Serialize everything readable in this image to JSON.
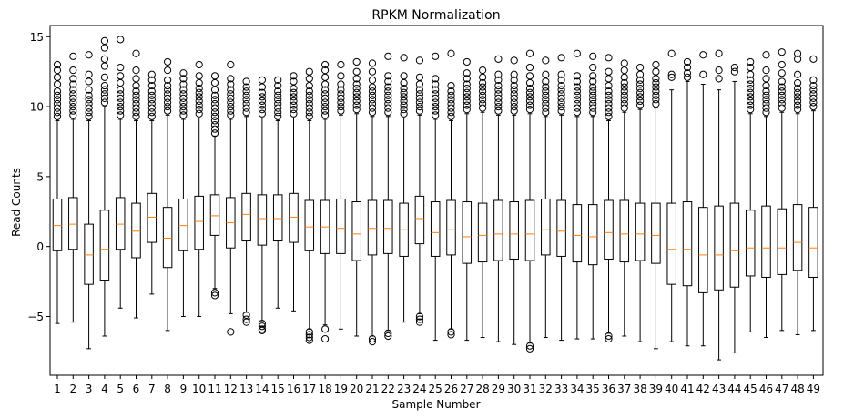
{
  "chart_data": {
    "type": "boxplot",
    "title": "RPKM Normalization",
    "xlabel": "Sample Number",
    "ylabel": "Read Counts",
    "ylim": [
      -9.2,
      15.8
    ],
    "yticks": [
      15,
      10,
      5,
      0,
      -5
    ],
    "ytick_labels": [
      "15",
      "10",
      "5",
      "0",
      "−5"
    ],
    "categories": [
      "1",
      "2",
      "3",
      "4",
      "5",
      "6",
      "7",
      "8",
      "9",
      "10",
      "11",
      "12",
      "13",
      "14",
      "15",
      "16",
      "17",
      "18",
      "19",
      "20",
      "21",
      "22",
      "23",
      "24",
      "25",
      "26",
      "27",
      "28",
      "29",
      "30",
      "31",
      "32",
      "33",
      "34",
      "35",
      "36",
      "37",
      "38",
      "39",
      "40",
      "41",
      "42",
      "43",
      "44",
      "45",
      "46",
      "47",
      "48",
      "49"
    ],
    "series": [
      {
        "name": "1",
        "q1": -0.3,
        "median": 1.5,
        "q3": 3.4,
        "whisker_low": -5.5,
        "whisker_high": 9.0,
        "outliers_high": [
          9.3,
          9.6,
          9.9,
          10.2,
          10.5,
          10.8,
          11.1,
          11.6,
          12.1,
          12.6,
          13.0
        ],
        "outliers_low": []
      },
      {
        "name": "2",
        "q1": -0.2,
        "median": 1.6,
        "q3": 3.5,
        "whisker_low": -5.4,
        "whisker_high": 9.1,
        "outliers_high": [
          9.4,
          9.7,
          10.0,
          10.3,
          10.6,
          10.9,
          11.2,
          11.6,
          12.0,
          12.6,
          13.6
        ],
        "outliers_low": []
      },
      {
        "name": "3",
        "q1": -2.7,
        "median": -0.6,
        "q3": 1.6,
        "whisker_low": -7.3,
        "whisker_high": 9.0,
        "outliers_high": [
          9.3,
          9.6,
          9.9,
          10.2,
          10.5,
          10.8,
          11.2,
          11.8,
          12.3,
          13.7
        ],
        "outliers_low": []
      },
      {
        "name": "4",
        "q1": -2.4,
        "median": -0.2,
        "q3": 2.6,
        "whisker_low": -6.4,
        "whisker_high": 10.0,
        "outliers_high": [
          10.3,
          10.6,
          10.9,
          11.2,
          11.5,
          12.1,
          12.9,
          13.4,
          14.2,
          14.7
        ],
        "outliers_low": []
      },
      {
        "name": "5",
        "q1": -0.2,
        "median": 1.6,
        "q3": 3.5,
        "whisker_low": -4.4,
        "whisker_high": 9.1,
        "outliers_high": [
          9.4,
          9.7,
          10.0,
          10.3,
          10.6,
          10.9,
          11.2,
          11.7,
          12.2,
          12.8,
          14.8
        ],
        "outliers_low": []
      },
      {
        "name": "6",
        "q1": -0.8,
        "median": 1.1,
        "q3": 3.1,
        "whisker_low": -5.1,
        "whisker_high": 9.0,
        "outliers_high": [
          9.3,
          9.6,
          9.9,
          10.2,
          10.5,
          10.8,
          11.1,
          11.5,
          12.0,
          12.6,
          13.8
        ],
        "outliers_low": []
      },
      {
        "name": "7",
        "q1": 0.3,
        "median": 2.1,
        "q3": 3.8,
        "whisker_low": -3.4,
        "whisker_high": 9.0,
        "outliers_high": [
          9.3,
          9.6,
          9.9,
          10.2,
          10.5,
          10.8,
          11.1,
          11.5,
          11.9,
          12.3
        ],
        "outliers_low": []
      },
      {
        "name": "8",
        "q1": -1.5,
        "median": 0.6,
        "q3": 2.8,
        "whisker_low": -6.0,
        "whisker_high": 9.4,
        "outliers_high": [
          9.7,
          10.0,
          10.3,
          10.6,
          10.9,
          11.2,
          11.5,
          11.9,
          12.6,
          13.2
        ],
        "outliers_low": []
      },
      {
        "name": "9",
        "q1": -0.3,
        "median": 1.5,
        "q3": 3.4,
        "whisker_low": -5.0,
        "whisker_high": 9.1,
        "outliers_high": [
          9.4,
          9.7,
          10.0,
          10.3,
          10.6,
          10.9,
          11.2,
          11.6,
          12.0,
          12.4
        ],
        "outliers_low": []
      },
      {
        "name": "10",
        "q1": -0.2,
        "median": 1.8,
        "q3": 3.6,
        "whisker_low": -5.0,
        "whisker_high": 9.2,
        "outliers_high": [
          9.5,
          9.8,
          10.1,
          10.4,
          10.7,
          11.0,
          11.3,
          11.7,
          12.2,
          13.0
        ],
        "outliers_low": []
      },
      {
        "name": "11",
        "q1": 0.8,
        "median": 2.2,
        "q3": 3.7,
        "whisker_low": -3.0,
        "whisker_high": 7.9,
        "outliers_high": [
          8.1,
          8.4,
          8.7,
          9.0,
          9.3,
          9.6,
          9.9,
          10.2,
          10.5,
          10.8,
          11.2,
          11.7,
          12.2
        ],
        "outliers_low": [
          -3.3,
          -3.5
        ]
      },
      {
        "name": "12",
        "q1": -0.1,
        "median": 1.7,
        "q3": 3.5,
        "whisker_low": -4.8,
        "whisker_high": 9.1,
        "outliers_high": [
          9.4,
          9.7,
          10.0,
          10.3,
          10.6,
          10.9,
          11.2,
          11.6,
          12.0,
          13.0
        ],
        "outliers_low": [
          -6.1
        ]
      },
      {
        "name": "13",
        "q1": 0.4,
        "median": 2.3,
        "q3": 3.8,
        "whisker_low": -4.7,
        "whisker_high": 9.3,
        "outliers_high": [
          9.6,
          9.9,
          10.2,
          10.5,
          10.8,
          11.1,
          11.4,
          11.8
        ],
        "outliers_low": [
          -4.9,
          -5.2,
          -5.4
        ]
      },
      {
        "name": "14",
        "q1": 0.1,
        "median": 2.0,
        "q3": 3.7,
        "whisker_low": -5.3,
        "whisker_high": 9.2,
        "outliers_high": [
          9.5,
          9.8,
          10.1,
          10.4,
          10.7,
          11.0,
          11.4,
          11.9
        ],
        "outliers_low": [
          -5.5,
          -5.7,
          -5.9,
          -6.0
        ]
      },
      {
        "name": "15",
        "q1": 0.4,
        "median": 2.0,
        "q3": 3.7,
        "whisker_low": -4.4,
        "whisker_high": 9.0,
        "outliers_high": [
          9.3,
          9.6,
          9.9,
          10.2,
          10.5,
          10.8,
          11.1,
          11.5,
          11.9
        ],
        "outliers_low": []
      },
      {
        "name": "16",
        "q1": 0.3,
        "median": 2.1,
        "q3": 3.8,
        "whisker_low": -4.6,
        "whisker_high": 9.2,
        "outliers_high": [
          9.5,
          9.8,
          10.1,
          10.4,
          10.7,
          11.0,
          11.3,
          11.8,
          12.2
        ],
        "outliers_low": []
      },
      {
        "name": "17",
        "q1": -0.3,
        "median": 1.4,
        "q3": 3.3,
        "whisker_low": -5.9,
        "whisker_high": 9.0,
        "outliers_high": [
          9.3,
          9.6,
          9.9,
          10.2,
          10.5,
          10.8,
          11.1,
          11.5,
          12.0,
          12.5
        ],
        "outliers_low": [
          -6.1,
          -6.3,
          -6.5,
          -6.7
        ]
      },
      {
        "name": "18",
        "q1": -0.5,
        "median": 1.4,
        "q3": 3.3,
        "whisker_low": -5.6,
        "whisker_high": 9.1,
        "outliers_high": [
          9.4,
          9.7,
          10.0,
          10.3,
          10.6,
          10.9,
          11.2,
          11.6,
          12.1,
          12.6,
          13.0
        ],
        "outliers_low": [
          -5.9,
          -6.6
        ]
      },
      {
        "name": "19",
        "q1": -0.5,
        "median": 1.3,
        "q3": 3.4,
        "whisker_low": -5.9,
        "whisker_high": 9.4,
        "outliers_high": [
          9.7,
          10.0,
          10.3,
          10.6,
          10.9,
          11.2,
          11.6,
          12.2,
          13.0
        ],
        "outliers_low": []
      },
      {
        "name": "20",
        "q1": -1.0,
        "median": 0.9,
        "q3": 3.2,
        "whisker_low": -6.4,
        "whisker_high": 9.5,
        "outliers_high": [
          9.8,
          10.1,
          10.4,
          10.7,
          11.0,
          11.3,
          11.6,
          12.0,
          12.5,
          13.2
        ],
        "outliers_low": []
      },
      {
        "name": "21",
        "q1": -0.6,
        "median": 1.3,
        "q3": 3.3,
        "whisker_low": -6.4,
        "whisker_high": 9.3,
        "outliers_high": [
          9.6,
          9.9,
          10.2,
          10.5,
          10.8,
          11.1,
          11.4,
          11.9,
          12.5,
          13.1
        ],
        "outliers_low": [
          -6.6,
          -6.8
        ]
      },
      {
        "name": "22",
        "q1": -0.5,
        "median": 1.3,
        "q3": 3.3,
        "whisker_low": -6.0,
        "whisker_high": 9.3,
        "outliers_high": [
          9.6,
          9.9,
          10.2,
          10.5,
          10.8,
          11.1,
          11.4,
          11.8,
          12.2,
          13.6
        ],
        "outliers_low": [
          -6.2,
          -6.4
        ]
      },
      {
        "name": "23",
        "q1": -0.7,
        "median": 1.2,
        "q3": 3.1,
        "whisker_low": -5.4,
        "whisker_high": 9.2,
        "outliers_high": [
          9.5,
          9.8,
          10.1,
          10.4,
          10.7,
          11.0,
          11.3,
          11.7,
          12.2,
          13.5
        ],
        "outliers_low": []
      },
      {
        "name": "24",
        "q1": 0.2,
        "median": 2.0,
        "q3": 3.6,
        "whisker_low": -4.8,
        "whisker_high": 9.4,
        "outliers_high": [
          9.7,
          10.0,
          10.3,
          10.6,
          10.9,
          11.2,
          11.6,
          12.1,
          13.3
        ],
        "outliers_low": [
          -5.0,
          -5.2,
          -5.4
        ]
      },
      {
        "name": "25",
        "q1": -0.7,
        "median": 1.0,
        "q3": 3.2,
        "whisker_low": -6.7,
        "whisker_high": 9.1,
        "outliers_high": [
          9.4,
          9.7,
          10.0,
          10.3,
          10.6,
          10.9,
          11.2,
          11.6,
          12.0,
          13.6
        ],
        "outliers_low": []
      },
      {
        "name": "26",
        "q1": -0.6,
        "median": 1.2,
        "q3": 3.3,
        "whisker_low": -5.9,
        "whisker_high": 9.0,
        "outliers_high": [
          9.3,
          9.6,
          9.9,
          10.2,
          10.5,
          10.8,
          11.1,
          11.5,
          13.8
        ],
        "outliers_low": [
          -6.1,
          -6.3
        ]
      },
      {
        "name": "27",
        "q1": -1.2,
        "median": 0.7,
        "q3": 3.2,
        "whisker_low": -6.7,
        "whisker_high": 9.5,
        "outliers_high": [
          9.8,
          10.1,
          10.4,
          10.7,
          11.0,
          11.3,
          11.6,
          12.0,
          12.4,
          13.2
        ],
        "outliers_low": []
      },
      {
        "name": "28",
        "q1": -1.1,
        "median": 0.8,
        "q3": 3.1,
        "whisker_low": -6.5,
        "whisker_high": 9.6,
        "outliers_high": [
          9.9,
          10.2,
          10.5,
          10.8,
          11.1,
          11.4,
          11.7,
          12.1,
          12.6
        ],
        "outliers_low": []
      },
      {
        "name": "29",
        "q1": -1.0,
        "median": 0.9,
        "q3": 3.3,
        "whisker_low": -6.8,
        "whisker_high": 9.4,
        "outliers_high": [
          9.7,
          10.0,
          10.3,
          10.6,
          10.9,
          11.2,
          11.5,
          11.9,
          12.3,
          13.4
        ],
        "outliers_low": []
      },
      {
        "name": "30",
        "q1": -0.9,
        "median": 0.9,
        "q3": 3.2,
        "whisker_low": -7.0,
        "whisker_high": 9.4,
        "outliers_high": [
          9.7,
          10.0,
          10.3,
          10.6,
          10.9,
          11.2,
          11.5,
          11.9,
          12.3,
          13.3
        ],
        "outliers_low": []
      },
      {
        "name": "31",
        "q1": -1.0,
        "median": 0.9,
        "q3": 3.3,
        "whisker_low": -6.9,
        "whisker_high": 9.5,
        "outliers_high": [
          9.8,
          10.1,
          10.4,
          10.7,
          11.0,
          11.3,
          11.7,
          12.2,
          12.8,
          13.8
        ],
        "outliers_low": [
          -7.1,
          -7.3
        ]
      },
      {
        "name": "32",
        "q1": -0.6,
        "median": 1.2,
        "q3": 3.4,
        "whisker_low": -6.5,
        "whisker_high": 9.3,
        "outliers_high": [
          9.6,
          9.9,
          10.2,
          10.5,
          10.8,
          11.1,
          11.4,
          11.8,
          12.3,
          13.3
        ],
        "outliers_low": []
      },
      {
        "name": "33",
        "q1": -0.7,
        "median": 1.1,
        "q3": 3.3,
        "whisker_low": -6.7,
        "whisker_high": 9.4,
        "outliers_high": [
          9.7,
          10.0,
          10.3,
          10.6,
          10.9,
          11.2,
          11.5,
          11.9,
          12.3,
          13.5
        ],
        "outliers_low": []
      },
      {
        "name": "34",
        "q1": -1.1,
        "median": 0.8,
        "q3": 3.0,
        "whisker_low": -6.6,
        "whisker_high": 9.3,
        "outliers_high": [
          9.6,
          9.9,
          10.2,
          10.5,
          10.8,
          11.1,
          11.4,
          11.8,
          12.2,
          13.8
        ],
        "outliers_low": []
      },
      {
        "name": "35",
        "q1": -1.3,
        "median": 0.7,
        "q3": 3.0,
        "whisker_low": -6.6,
        "whisker_high": 9.3,
        "outliers_high": [
          9.6,
          9.9,
          10.2,
          10.5,
          10.8,
          11.1,
          11.4,
          11.8,
          12.2,
          12.8,
          13.6
        ],
        "outliers_low": []
      },
      {
        "name": "36",
        "q1": -0.9,
        "median": 1.0,
        "q3": 3.3,
        "whisker_low": -6.2,
        "whisker_high": 9.0,
        "outliers_high": [
          9.3,
          9.6,
          9.9,
          10.2,
          10.5,
          10.8,
          11.1,
          11.5,
          12.0,
          12.5,
          13.5
        ],
        "outliers_low": [
          -6.4,
          -6.6
        ]
      },
      {
        "name": "37",
        "q1": -1.1,
        "median": 0.9,
        "q3": 3.3,
        "whisker_low": -6.4,
        "whisker_high": 9.6,
        "outliers_high": [
          9.9,
          10.2,
          10.5,
          10.8,
          11.1,
          11.4,
          11.7,
          12.1,
          12.6,
          13.1
        ],
        "outliers_low": []
      },
      {
        "name": "38",
        "q1": -1.0,
        "median": 0.9,
        "q3": 3.1,
        "whisker_low": -6.8,
        "whisker_high": 9.8,
        "outliers_high": [
          10.1,
          10.4,
          10.7,
          11.0,
          11.3,
          11.6,
          11.9,
          12.3,
          12.8
        ],
        "outliers_low": []
      },
      {
        "name": "39",
        "q1": -1.2,
        "median": 0.8,
        "q3": 3.1,
        "whisker_low": -7.3,
        "whisker_high": 9.9,
        "outliers_high": [
          10.2,
          10.5,
          10.8,
          11.1,
          11.4,
          11.7,
          12.0,
          12.5,
          13.0
        ],
        "outliers_low": []
      },
      {
        "name": "40",
        "q1": -2.7,
        "median": -0.2,
        "q3": 3.1,
        "whisker_low": -6.8,
        "whisker_high": 11.2,
        "outliers_high": [
          12.1,
          12.3,
          13.8
        ],
        "outliers_low": []
      },
      {
        "name": "41",
        "q1": -2.8,
        "median": -0.2,
        "q3": 3.2,
        "whisker_low": -7.1,
        "whisker_high": 11.8,
        "outliers_high": [
          12.1,
          12.4,
          12.8,
          13.2
        ],
        "outliers_low": []
      },
      {
        "name": "42",
        "q1": -3.3,
        "median": -0.6,
        "q3": 2.8,
        "whisker_low": -7.1,
        "whisker_high": 11.6,
        "outliers_high": [
          12.3,
          13.7
        ],
        "outliers_low": []
      },
      {
        "name": "43",
        "q1": -3.1,
        "median": -0.6,
        "q3": 2.9,
        "whisker_low": -8.1,
        "whisker_high": 11.2,
        "outliers_high": [
          12.0,
          12.6,
          13.8
        ],
        "outliers_low": []
      },
      {
        "name": "44",
        "q1": -2.9,
        "median": -0.3,
        "q3": 3.1,
        "whisker_low": -7.6,
        "whisker_high": 11.8,
        "outliers_high": [
          12.5,
          12.8
        ],
        "outliers_low": []
      },
      {
        "name": "45",
        "q1": -2.1,
        "median": -0.1,
        "q3": 2.6,
        "whisker_low": -6.1,
        "whisker_high": 9.5,
        "outliers_high": [
          9.8,
          10.1,
          10.4,
          10.7,
          11.0,
          11.3,
          11.6,
          11.9,
          12.3,
          12.8,
          13.2
        ],
        "outliers_low": []
      },
      {
        "name": "46",
        "q1": -2.2,
        "median": -0.1,
        "q3": 2.9,
        "whisker_low": -6.5,
        "whisker_high": 9.3,
        "outliers_high": [
          9.6,
          9.9,
          10.2,
          10.5,
          10.8,
          11.1,
          11.5,
          12.0,
          12.6,
          13.7
        ],
        "outliers_low": []
      },
      {
        "name": "47",
        "q1": -2.0,
        "median": -0.1,
        "q3": 2.7,
        "whisker_low": -6.0,
        "whisker_high": 9.6,
        "outliers_high": [
          9.9,
          10.2,
          10.5,
          10.8,
          11.1,
          11.4,
          11.8,
          12.4,
          13.0,
          13.9
        ],
        "outliers_low": []
      },
      {
        "name": "48",
        "q1": -1.7,
        "median": 0.3,
        "q3": 3.0,
        "whisker_low": -6.3,
        "whisker_high": 9.5,
        "outliers_high": [
          9.8,
          10.1,
          10.4,
          10.7,
          11.0,
          11.3,
          11.7,
          12.3,
          13.4,
          13.8
        ],
        "outliers_low": []
      },
      {
        "name": "49",
        "q1": -2.2,
        "median": -0.1,
        "q3": 2.8,
        "whisker_low": -6.0,
        "whisker_high": 9.7,
        "outliers_high": [
          10.0,
          10.3,
          10.6,
          10.9,
          11.2,
          11.5,
          11.9,
          13.4
        ],
        "outliers_low": []
      }
    ],
    "colors": {
      "box": "#000000",
      "median": "#ff7f0e",
      "flier": "#000000",
      "background": "#ffffff"
    }
  }
}
